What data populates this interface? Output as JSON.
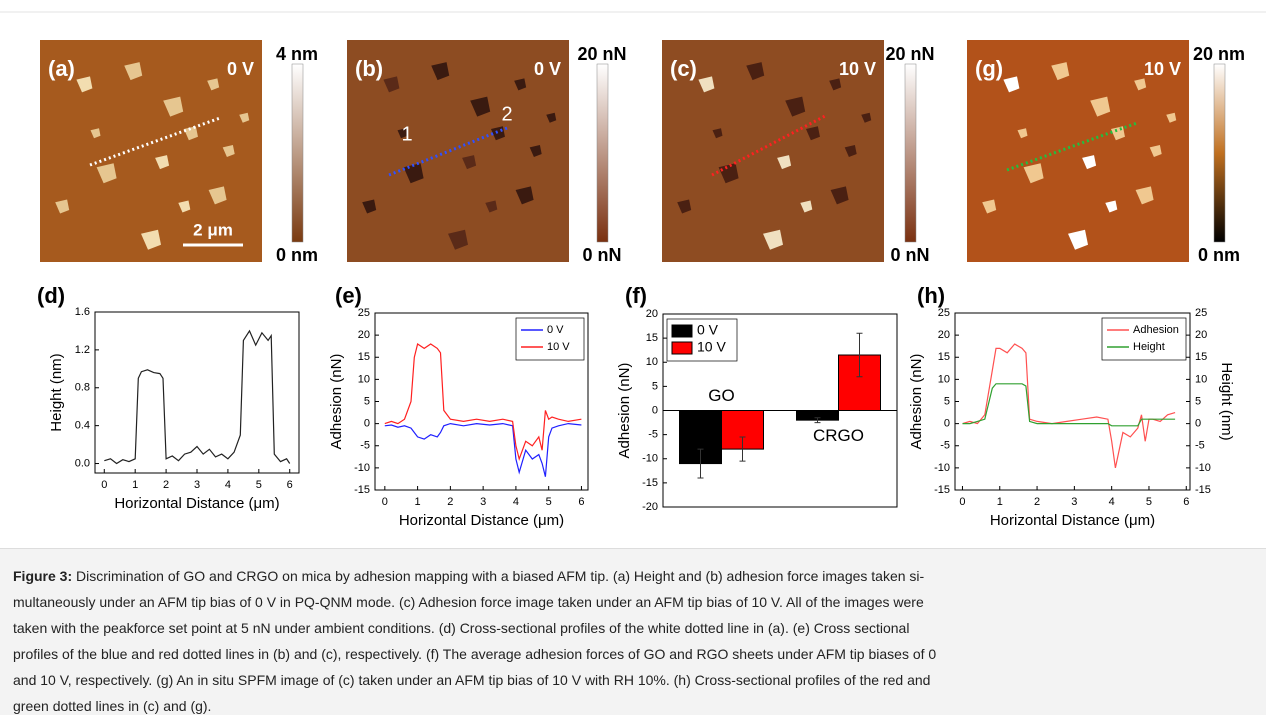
{
  "images": [
    {
      "panel": "(a)",
      "bias": "0 V",
      "scale_max": "4 nm",
      "scale_min": "0 nm",
      "scale_bar": "2 μm"
    },
    {
      "panel": "(b)",
      "bias": "0 V",
      "scale_max": "20 nN",
      "scale_min": "0 nN",
      "markers": [
        "1",
        "2"
      ]
    },
    {
      "panel": "(c)",
      "bias": "10 V",
      "scale_max": "20 nN",
      "scale_min": "0 nN"
    },
    {
      "panel": "(g)",
      "bias": "10 V",
      "scale_max": "20 nm",
      "scale_min": "0 nm"
    }
  ],
  "chart_data": [
    {
      "type": "line",
      "panel": "(d)",
      "x_label": "Horizontal Distance (μm)",
      "y_label": "Height (nm)",
      "xlim": [
        -0.3,
        6.3
      ],
      "xticks": [
        0,
        1,
        2,
        3,
        4,
        5,
        6
      ],
      "ylim": [
        -0.1,
        1.6
      ],
      "yticks": [
        {
          "value": 0,
          "label": "0.0"
        },
        0.4,
        0.8,
        1.2,
        1.6
      ],
      "x": [
        0,
        0.2,
        0.4,
        0.6,
        0.8,
        1.0,
        1.1,
        1.2,
        1.4,
        1.6,
        1.8,
        1.9,
        2.0,
        2.2,
        2.4,
        2.6,
        2.8,
        3.0,
        3.2,
        3.4,
        3.6,
        3.8,
        4.0,
        4.2,
        4.4,
        4.5,
        4.7,
        4.9,
        5.1,
        5.3,
        5.4,
        5.5,
        5.7,
        5.9,
        6.0
      ],
      "series": [
        {
          "color": "#222222",
          "values": [
            0.03,
            0.05,
            0.0,
            0.04,
            0.02,
            0.05,
            0.9,
            0.97,
            0.99,
            0.96,
            0.95,
            0.9,
            0.05,
            0.08,
            0.03,
            0.1,
            0.12,
            0.18,
            0.1,
            0.15,
            0.07,
            0.1,
            0.05,
            0.12,
            0.3,
            1.3,
            1.4,
            1.25,
            1.38,
            1.3,
            1.35,
            0.1,
            0.02,
            0.05,
            0.0
          ]
        }
      ]
    },
    {
      "type": "line",
      "panel": "(e)",
      "x_label": "Horizontal Distance (μm)",
      "y_label": "Adhesion (nN)",
      "xlim": [
        -0.3,
        6.2
      ],
      "xticks": [
        0,
        1,
        2,
        3,
        4,
        5,
        6
      ],
      "ylim": [
        -15,
        25
      ],
      "yticks": [
        -15,
        -10,
        -5,
        0,
        5,
        10,
        15,
        20,
        25
      ],
      "legend": "top-right",
      "x": [
        0,
        0.2,
        0.4,
        0.6,
        0.8,
        0.9,
        1.0,
        1.2,
        1.4,
        1.6,
        1.7,
        1.8,
        2.0,
        2.4,
        2.8,
        3.2,
        3.6,
        3.9,
        4.0,
        4.1,
        4.3,
        4.5,
        4.7,
        4.8,
        4.9,
        5.0,
        5.1,
        5.3,
        5.6,
        6.0
      ],
      "series": [
        {
          "name": "0 V",
          "color": "#2020ff",
          "values": [
            -0.5,
            -0.3,
            -0.8,
            -0.5,
            -1,
            -2,
            -3,
            -3.5,
            -2.5,
            -3,
            -2,
            -0.5,
            0,
            -0.5,
            0,
            -0.3,
            0,
            -0.5,
            -8,
            -11,
            -6,
            -8,
            -7,
            -9,
            -12,
            -3,
            -1,
            -0.5,
            0,
            -0.3
          ]
        },
        {
          "name": "10 V",
          "color": "#ff2020",
          "values": [
            0,
            0.5,
            0,
            1,
            5,
            15,
            18,
            17,
            18,
            17,
            16,
            3,
            1,
            0.5,
            1,
            0.5,
            1,
            0.5,
            -5,
            -8,
            -4,
            -5,
            -3,
            -6,
            3,
            1,
            1.5,
            1,
            0.5,
            1
          ]
        }
      ]
    },
    {
      "type": "bar",
      "panel": "(f)",
      "y_label": "Adhesion (nN)",
      "ylim": [
        -20,
        20
      ],
      "yticks": [
        -20,
        -15,
        -10,
        -5,
        0,
        5,
        10,
        15,
        20
      ],
      "legend": "top-left",
      "categories": [
        "GO",
        "CRGO"
      ],
      "series": [
        {
          "name": "0 V",
          "color": "#000000",
          "values": [
            -11,
            -2
          ],
          "errors": [
            3,
            0.5
          ]
        },
        {
          "name": "10 V",
          "color": "#ff0000",
          "values": [
            -8,
            11.5
          ],
          "errors": [
            2.5,
            4.5
          ]
        }
      ]
    },
    {
      "type": "line",
      "panel": "(h)",
      "x_label": "Horizontal Distance (μm)",
      "y_label": "Adhesion (nN)",
      "y2_label": "Height (nm)",
      "xlim": [
        -0.2,
        6.1
      ],
      "xticks": [
        0,
        1,
        2,
        3,
        4,
        5,
        6
      ],
      "ylim": [
        -15,
        25
      ],
      "yticks": [
        -15,
        -10,
        -5,
        0,
        5,
        10,
        15,
        20,
        25
      ],
      "y2lim": [
        -15,
        25
      ],
      "y2ticks": [
        -15,
        -10,
        -5,
        0,
        5,
        10,
        15,
        20,
        25
      ],
      "legend": "top-right",
      "x": [
        0,
        0.2,
        0.4,
        0.6,
        0.8,
        0.9,
        1.0,
        1.2,
        1.4,
        1.6,
        1.7,
        1.8,
        2.0,
        2.4,
        2.8,
        3.2,
        3.6,
        3.9,
        4.0,
        4.1,
        4.3,
        4.5,
        4.7,
        4.8,
        4.9,
        5.0,
        5.1,
        5.3,
        5.5,
        5.7
      ],
      "series": [
        {
          "name": "Adhesion",
          "color": "#ff5050",
          "values": [
            0,
            0.5,
            0,
            2,
            12,
            17,
            17,
            16,
            18,
            17,
            16,
            1,
            0.5,
            0,
            0.5,
            1,
            1.5,
            1,
            -4,
            -10,
            -2,
            -3,
            -1,
            2,
            -4,
            1,
            1,
            0.5,
            2,
            2.5
          ]
        },
        {
          "name": "Height",
          "color": "#30a030",
          "axis": "y2",
          "values": [
            0,
            0,
            0.5,
            1,
            8,
            9,
            9,
            9,
            9,
            9,
            8.5,
            0.5,
            0,
            0,
            0,
            0,
            0,
            0,
            -0.5,
            -0.5,
            -0.5,
            -0.5,
            -0.5,
            1,
            1,
            1,
            1,
            1,
            1,
            1
          ]
        }
      ]
    }
  ],
  "caption": {
    "label": "Figure 3:",
    "lines": [
      " Discrimination of GO and CRGO on mica by adhesion mapping with a biased AFM tip. (a) Height and (b) adhesion force images taken si-",
      "multaneously under an AFM tip bias of 0 V in PQ-QNM mode. (c) Adhesion force image taken under an AFM tip bias of 10 V. All of the images were",
      "taken with the peakforce set point at 5 nN under ambient conditions. (d) Cross-sectional profiles of the white dotted line in (a). (e) Cross sectional",
      "profiles of the blue and red dotted lines in (b) and (c), respectively. (f) The average adhesion forces of GO and RGO sheets under AFM tip biases of 0",
      "and 10 V, respectively. (g) An in situ SPFM image of (c) taken under an AFM tip bias of 10 V with RH 10%. (h) Cross-sectional profiles of the red and",
      "green dotted lines in (c) and (g)."
    ]
  }
}
